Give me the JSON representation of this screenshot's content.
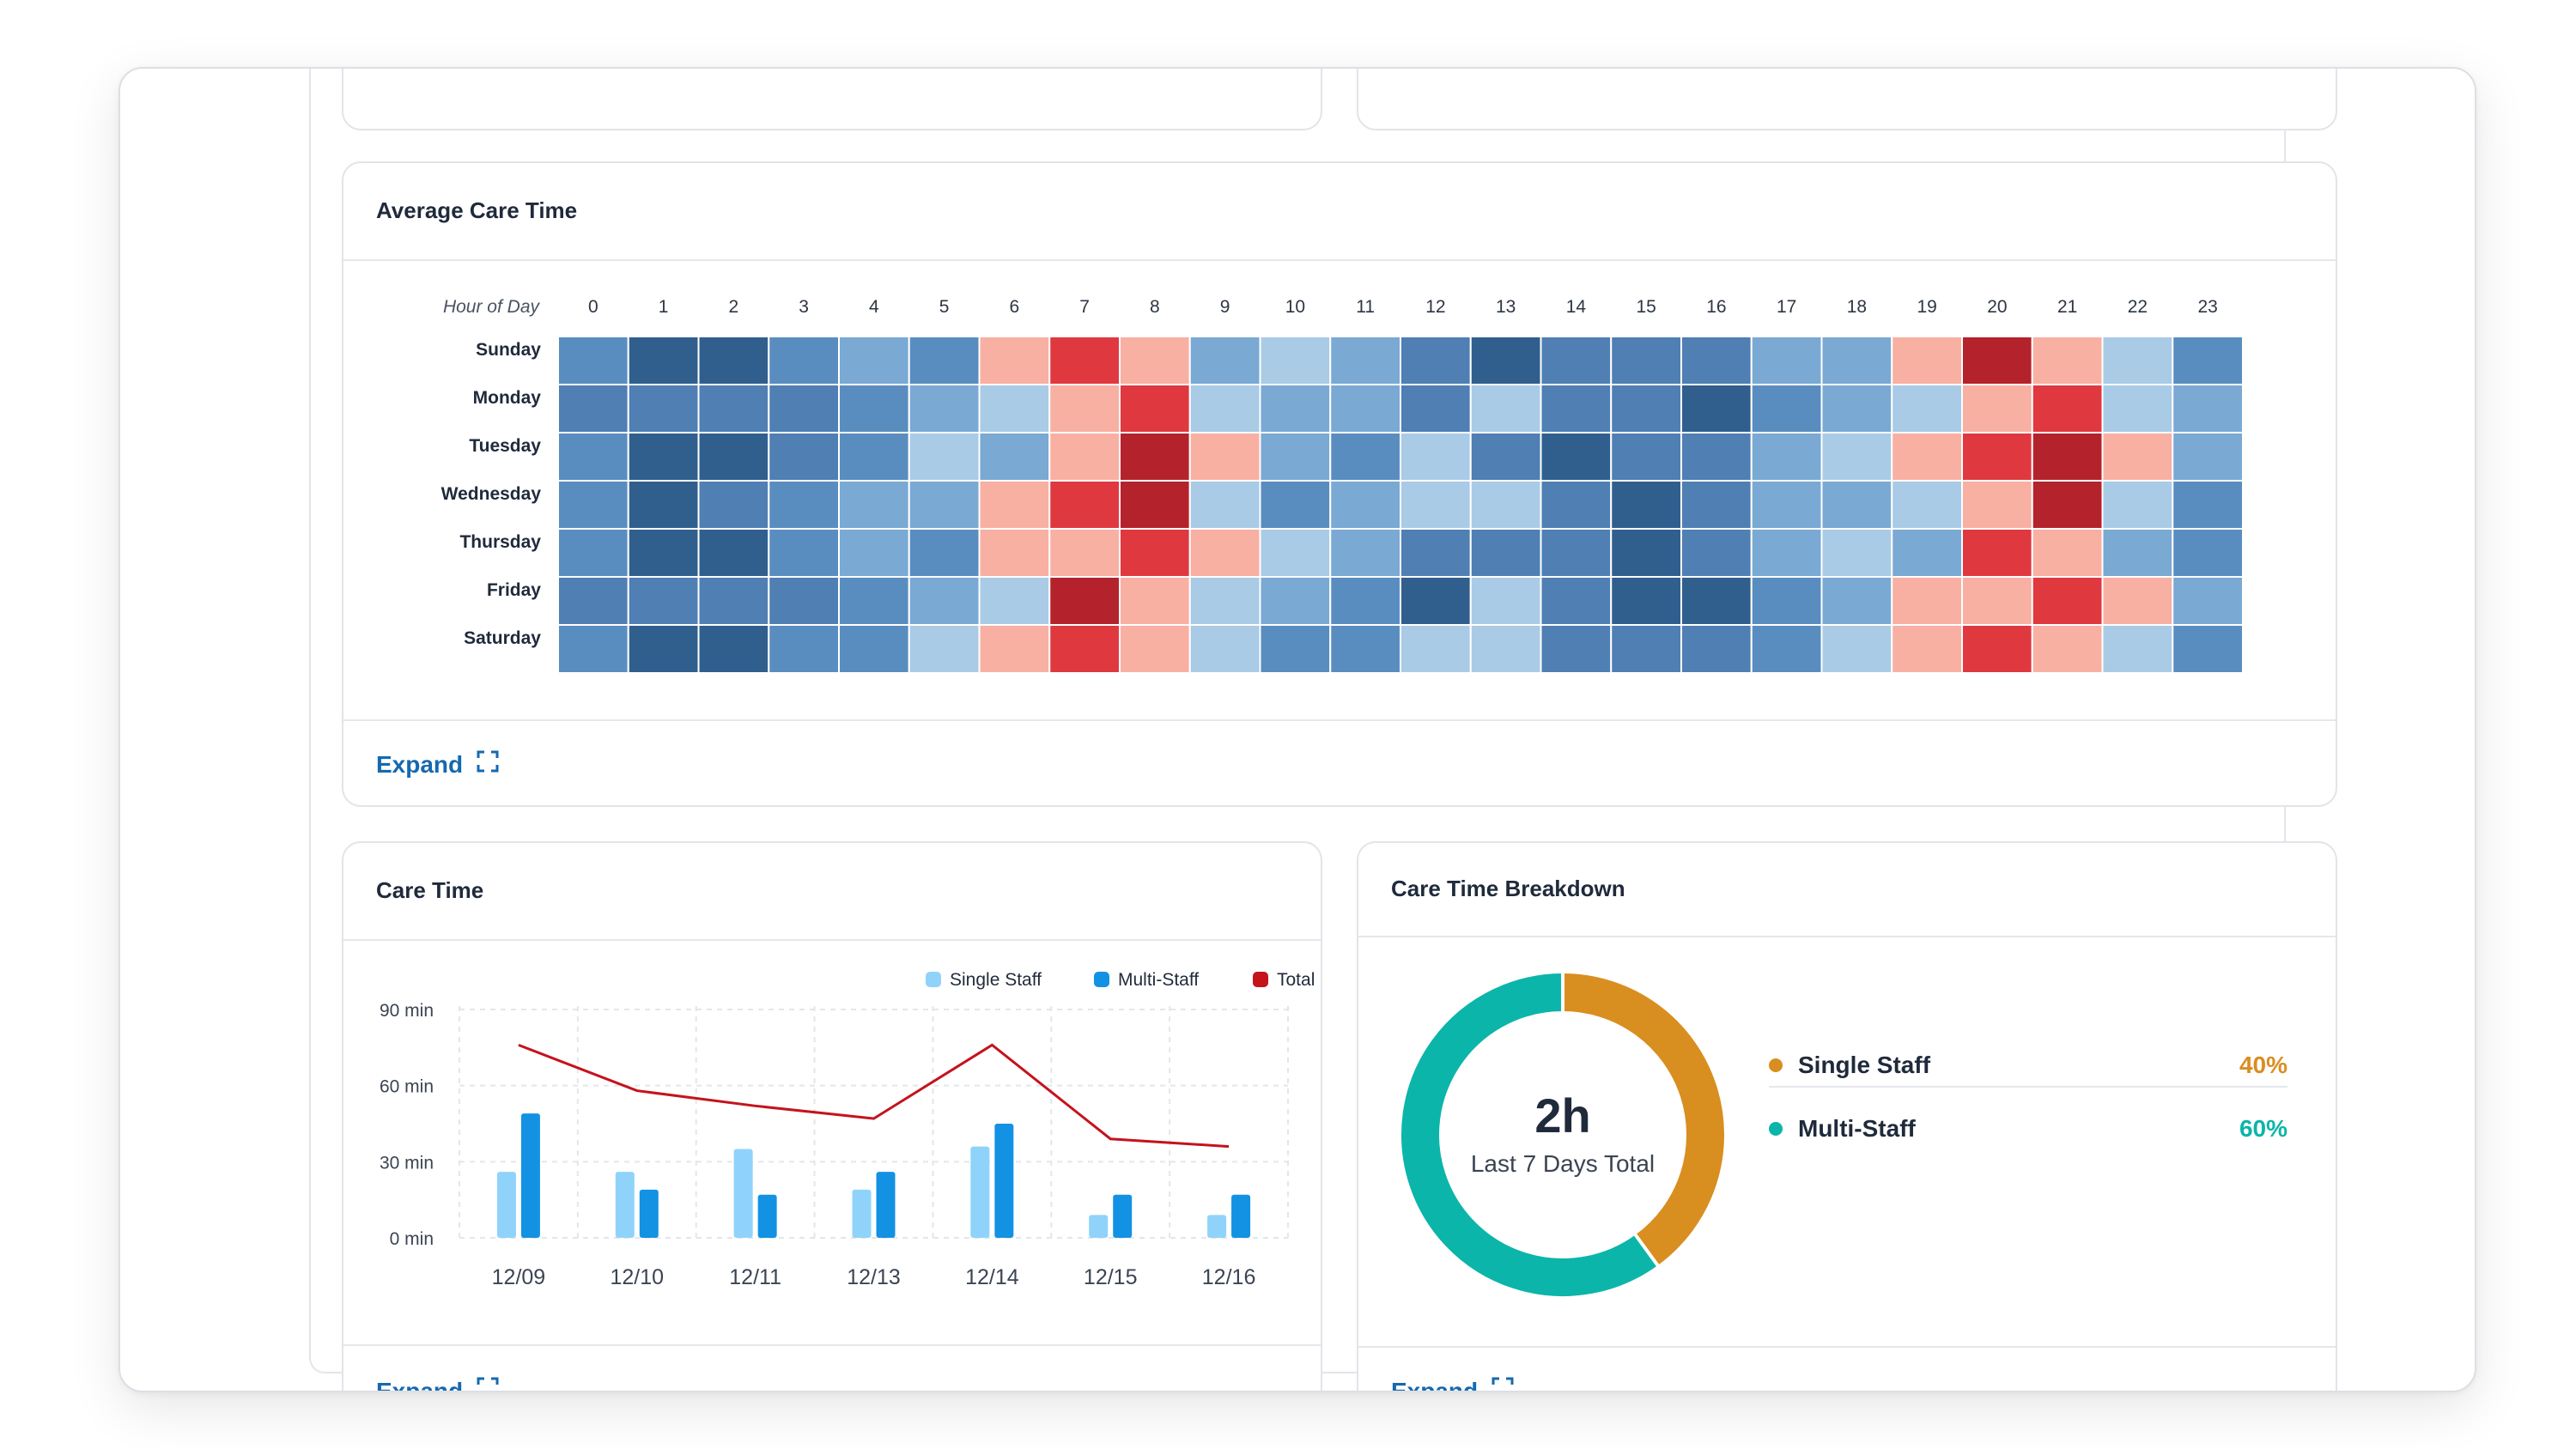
{
  "cards": {
    "heatmap": {
      "title": "Average Care Time",
      "expand_label": "Expand"
    },
    "care_time": {
      "title": "Care Time",
      "expand_label": "Expand"
    },
    "breakdown": {
      "title": "Care Time Breakdown",
      "expand_label": "Expand",
      "center_value": "2h",
      "center_label": "Last 7 Days Total",
      "items": [
        {
          "label": "Single Staff",
          "pct": "40%",
          "color": "#d98e20"
        },
        {
          "label": "Multi-Staff",
          "pct": "60%",
          "color": "#0bb5a9"
        }
      ]
    }
  },
  "chart_data": [
    {
      "type": "heatmap",
      "title": "Average Care Time",
      "xlabel": "Hour of Day",
      "x": [
        "0",
        "1",
        "2",
        "3",
        "4",
        "5",
        "6",
        "7",
        "8",
        "9",
        "10",
        "11",
        "12",
        "13",
        "14",
        "15",
        "16",
        "17",
        "18",
        "19",
        "20",
        "21",
        "22",
        "23"
      ],
      "y": [
        "Sunday",
        "Monday",
        "Tuesday",
        "Wednesday",
        "Thursday",
        "Friday",
        "Saturday"
      ],
      "scale_note": "levels 0 (light blue) to 3 (dark blue) low; 4 (light red) to 6 (dark red) high",
      "colors": [
        "#a9cbe6",
        "#7aa9d3",
        "#5a8dbf",
        "#4f7fb3",
        "#305f8e",
        "#f8b0a3",
        "#e0383f",
        "#b4232b"
      ],
      "values": [
        [
          2,
          4,
          4,
          2,
          1,
          2,
          5,
          6,
          5,
          1,
          0,
          1,
          3,
          4,
          3,
          3,
          3,
          1,
          1,
          5,
          7,
          5,
          0,
          2
        ],
        [
          3,
          3,
          3,
          3,
          2,
          1,
          0,
          5,
          6,
          0,
          1,
          1,
          3,
          0,
          3,
          3,
          4,
          2,
          1,
          0,
          5,
          6,
          0,
          1
        ],
        [
          2,
          4,
          4,
          3,
          2,
          0,
          1,
          5,
          7,
          5,
          1,
          2,
          0,
          3,
          4,
          3,
          3,
          1,
          0,
          5,
          6,
          7,
          5,
          1
        ],
        [
          2,
          4,
          3,
          2,
          1,
          1,
          5,
          6,
          7,
          0,
          2,
          1,
          0,
          0,
          3,
          4,
          3,
          1,
          1,
          0,
          5,
          7,
          0,
          2
        ],
        [
          2,
          4,
          4,
          2,
          1,
          2,
          5,
          5,
          6,
          5,
          0,
          1,
          3,
          3,
          3,
          4,
          3,
          1,
          0,
          1,
          6,
          5,
          1,
          2
        ],
        [
          3,
          3,
          3,
          3,
          2,
          1,
          0,
          7,
          5,
          0,
          1,
          2,
          4,
          0,
          3,
          4,
          4,
          2,
          1,
          5,
          5,
          6,
          5,
          1
        ],
        [
          2,
          4,
          4,
          2,
          2,
          0,
          5,
          6,
          5,
          0,
          2,
          2,
          0,
          0,
          3,
          3,
          3,
          2,
          0,
          5,
          6,
          5,
          0,
          2
        ]
      ]
    },
    {
      "type": "bar",
      "title": "Care Time",
      "categories": [
        "12/09",
        "12/10",
        "12/11",
        "12/13",
        "12/14",
        "12/15",
        "12/16"
      ],
      "y_ticks": [
        "90 min",
        "60 min",
        "30 min",
        "0 min"
      ],
      "ylim": [
        0,
        90
      ],
      "series": [
        {
          "name": "Single Staff",
          "type": "bar",
          "color": "#8fd3fb",
          "values": [
            26,
            26,
            35,
            19,
            36,
            9,
            9
          ]
        },
        {
          "name": "Multi-Staff",
          "type": "bar",
          "color": "#1392e3",
          "values": [
            49,
            19,
            17,
            26,
            45,
            17,
            17
          ]
        },
        {
          "name": "Total",
          "type": "line",
          "color": "#c4131d",
          "values": [
            76,
            58,
            52,
            47,
            76,
            39,
            36
          ]
        }
      ]
    },
    {
      "type": "pie",
      "title": "Care Time Breakdown",
      "categories": [
        "Single Staff",
        "Multi-Staff"
      ],
      "values": [
        40,
        60
      ],
      "colors": [
        "#d98e20",
        "#0bb5a9"
      ]
    }
  ]
}
